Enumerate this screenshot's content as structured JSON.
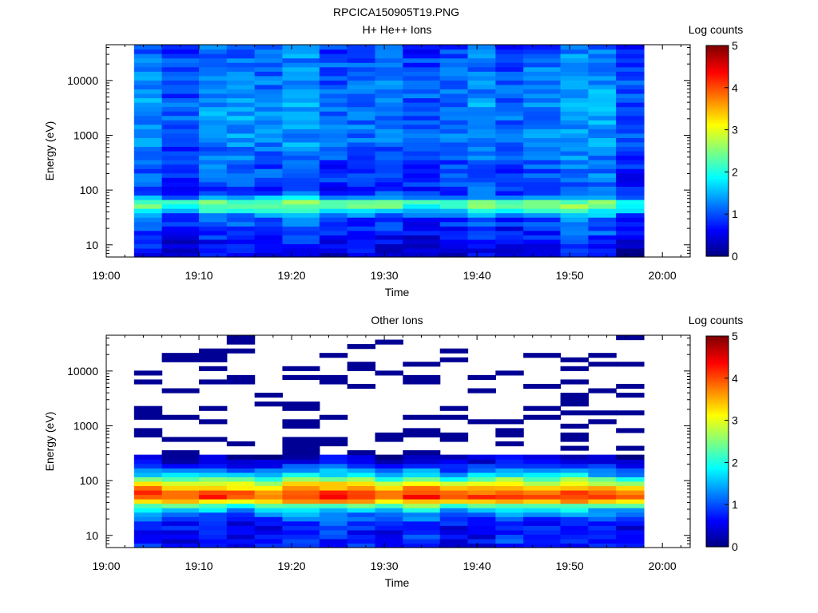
{
  "figure_title": "RPCICA150905T19.PNG",
  "colors": {
    "axis": "#000000",
    "empty_bin": "#ffffff",
    "background": "#ffffff"
  },
  "chart_data": [
    {
      "type": "heatmap",
      "title": "H+ He++ Ions",
      "xlabel": "Time",
      "ylabel": "Energy (eV)",
      "yscale": "log",
      "x_ticks": [
        "19:00",
        "19:10",
        "19:20",
        "19:30",
        "19:40",
        "19:50",
        "20:00"
      ],
      "xlim": [
        "19:00",
        "20:03"
      ],
      "y_ticks": [
        "10",
        "100",
        "1000",
        "10000"
      ],
      "ylim": [
        6,
        45000
      ],
      "colorbar": {
        "label": "Log counts",
        "ticks": [
          "0",
          "1",
          "2",
          "3",
          "4",
          "5"
        ],
        "range": [
          0,
          5
        ],
        "colormap": "jet"
      },
      "columns": [
        "19:03",
        "19:06",
        "19:10",
        "19:13",
        "19:16",
        "19:19",
        "19:23",
        "19:26",
        "19:29",
        "19:32",
        "19:36",
        "19:39",
        "19:42",
        "19:45",
        "19:49",
        "19:52",
        "19:55"
      ],
      "data_extent": [
        "19:03",
        "19:58"
      ],
      "profile": {
        "energy_ev": [
          7,
          9,
          12,
          16,
          22,
          30,
          38,
          45,
          55,
          66,
          80,
          110,
          160,
          260,
          450,
          800,
          1500,
          3000,
          6000,
          12000,
          25000,
          40000
        ],
        "log_counts": [
          0.5,
          0.6,
          0.6,
          0.8,
          0.9,
          1.0,
          1.4,
          2.1,
          2.4,
          2.2,
          1.0,
          0.9,
          1.0,
          1.0,
          1.1,
          1.2,
          1.2,
          1.3,
          1.2,
          1.2,
          1.1,
          1.0
        ]
      }
    },
    {
      "type": "heatmap",
      "title": "Other Ions",
      "xlabel": "Time",
      "ylabel": "Energy (eV)",
      "yscale": "log",
      "x_ticks": [
        "19:00",
        "19:10",
        "19:20",
        "19:30",
        "19:40",
        "19:50",
        "20:00"
      ],
      "xlim": [
        "19:00",
        "20:03"
      ],
      "y_ticks": [
        "10",
        "100",
        "1000",
        "10000"
      ],
      "ylim": [
        6,
        45000
      ],
      "colorbar": {
        "label": "Log counts",
        "ticks": [
          "0",
          "1",
          "2",
          "3",
          "4",
          "5"
        ],
        "range": [
          0,
          5
        ],
        "colormap": "jet"
      },
      "columns": [
        "19:03",
        "19:06",
        "19:10",
        "19:13",
        "19:16",
        "19:19",
        "19:23",
        "19:26",
        "19:29",
        "19:32",
        "19:36",
        "19:39",
        "19:42",
        "19:45",
        "19:49",
        "19:52",
        "19:55"
      ],
      "data_extent": [
        "19:03",
        "19:58"
      ],
      "profile": {
        "energy_ev": [
          7,
          9,
          12,
          16,
          22,
          30,
          38,
          45,
          55,
          66,
          80,
          100,
          130,
          170,
          220,
          300
        ],
        "log_counts": [
          0.7,
          0.7,
          0.7,
          0.8,
          1.0,
          1.6,
          2.6,
          3.8,
          4.2,
          3.8,
          3.3,
          2.6,
          1.6,
          1.0,
          0.5,
          0.2
        ]
      },
      "sparse_counts": 0.1
    }
  ]
}
